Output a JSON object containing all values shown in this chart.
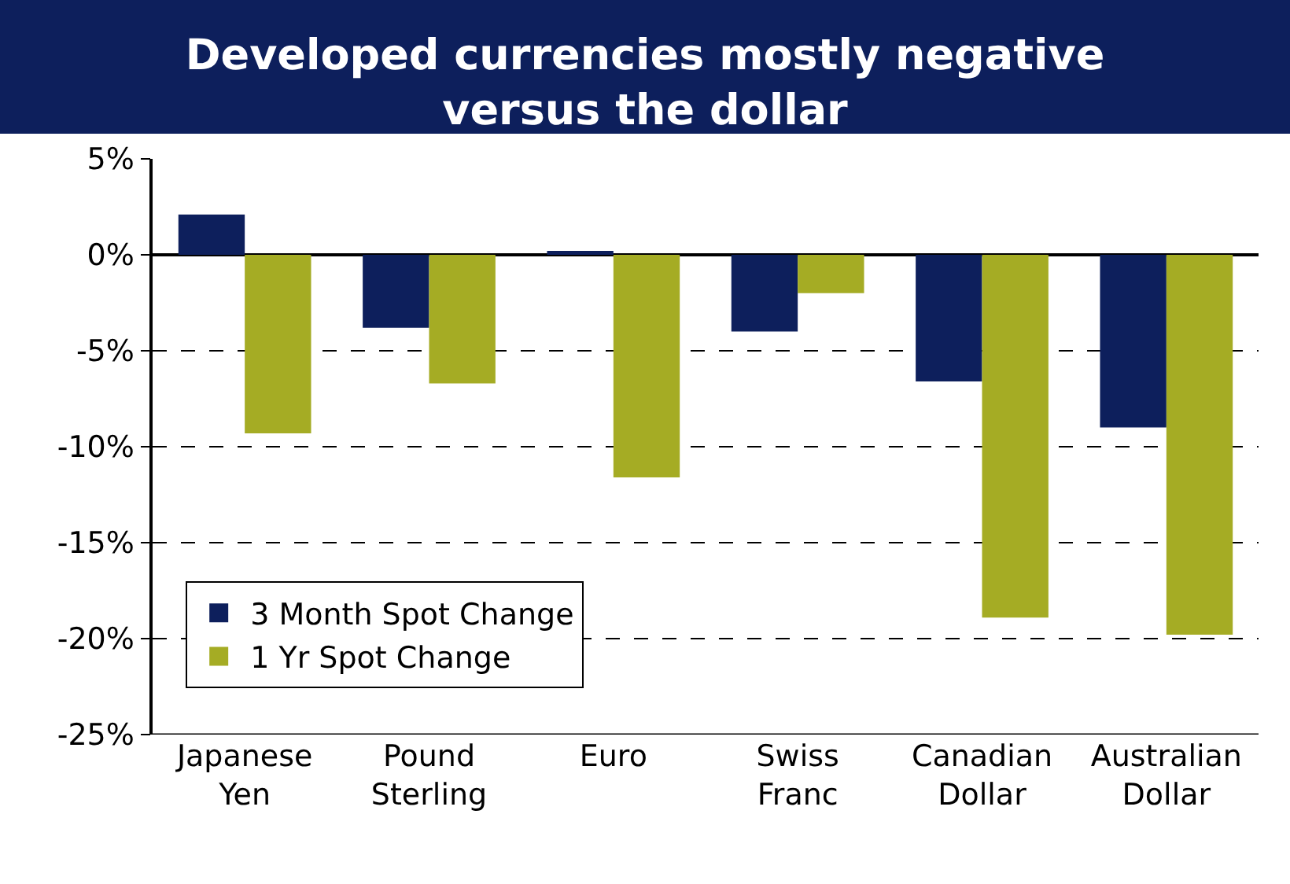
{
  "chart_data": {
    "type": "bar",
    "title": "Developed currencies mostly negative versus the dollar",
    "categories": [
      "Japanese Yen",
      "Pound Sterling",
      "Euro",
      "Swiss Franc",
      "Canadian Dollar",
      "Australian Dollar"
    ],
    "series": [
      {
        "name": "3 Month Spot Change",
        "color": "#0d1f5c",
        "values": [
          2.1,
          -3.8,
          0.2,
          -4.0,
          -6.6,
          -9.0
        ]
      },
      {
        "name": "1 Yr Spot Change",
        "color": "#a5ac24",
        "values": [
          -9.3,
          -6.7,
          -11.6,
          -2.0,
          -18.9,
          -19.8
        ]
      }
    ],
    "ylim": [
      -25,
      5
    ],
    "yticks": [
      {
        "value": 5,
        "label": "5%"
      },
      {
        "value": 0,
        "label": "0%"
      },
      {
        "value": -5,
        "label": "-5%"
      },
      {
        "value": -10,
        "label": "-10%"
      },
      {
        "value": -15,
        "label": "-15%"
      },
      {
        "value": -20,
        "label": "-20%"
      },
      {
        "value": -25,
        "label": "-25%"
      }
    ],
    "grid": "y",
    "legend": "bottom left"
  }
}
